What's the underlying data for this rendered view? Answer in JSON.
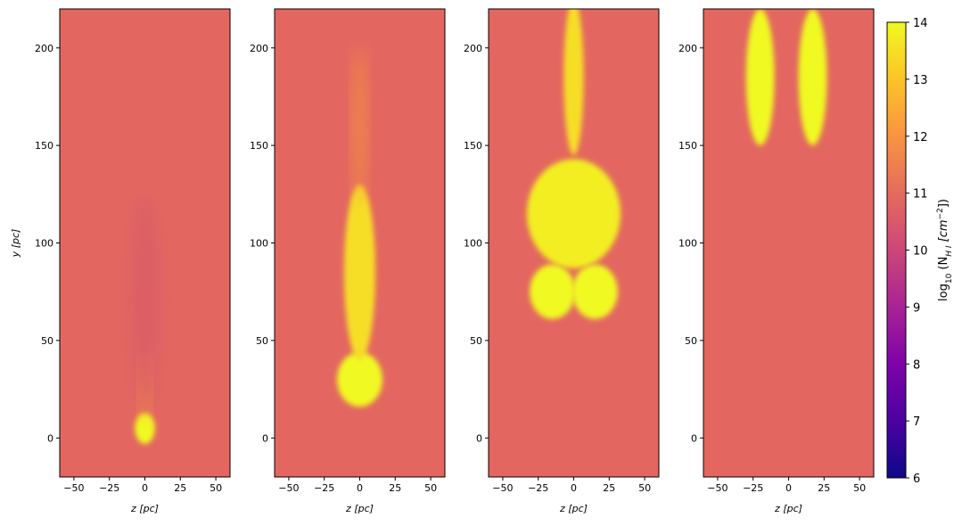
{
  "chart_data": {
    "type": "heatmap",
    "title": "",
    "panels": [
      {
        "name": "panel-1",
        "xlabel": "z [pc]",
        "ylabel": "y [pc]",
        "xlim": [
          -60,
          60
        ],
        "ylim": [
          -20,
          220
        ],
        "xticks": [
          -50,
          -25,
          0,
          25,
          50
        ],
        "yticks": [
          0,
          50,
          100,
          150,
          200
        ],
        "background_value": 10.9,
        "cloud": [
          {
            "z": 0,
            "y": 5,
            "rz": 7,
            "ry": 8,
            "value": 14
          },
          {
            "z": 0,
            "y": 28,
            "rz": 3,
            "ry": 18,
            "value": 12.5
          },
          {
            "z": 0,
            "y": 70,
            "rz": 10,
            "ry": 55,
            "value": 10.6
          }
        ]
      },
      {
        "name": "panel-2",
        "xlabel": "z [pc]",
        "ylabel": "",
        "xlim": [
          -60,
          60
        ],
        "ylim": [
          -20,
          220
        ],
        "xticks": [
          -50,
          -25,
          0,
          25,
          50
        ],
        "yticks": [
          0,
          50,
          100,
          150,
          200
        ],
        "background_value": 10.9,
        "cloud": [
          {
            "z": 0,
            "y": 30,
            "rz": 16,
            "ry": 14,
            "value": 14
          },
          {
            "z": 0,
            "y": 85,
            "rz": 11,
            "ry": 45,
            "value": 13.5
          },
          {
            "z": 0,
            "y": 160,
            "rz": 4,
            "ry": 40,
            "value": 12
          }
        ]
      },
      {
        "name": "panel-3",
        "xlabel": "z [pc]",
        "ylabel": "",
        "xlim": [
          -60,
          60
        ],
        "ylim": [
          -20,
          220
        ],
        "xticks": [
          -50,
          -25,
          0,
          25,
          50
        ],
        "yticks": [
          0,
          50,
          100,
          150,
          200
        ],
        "background_value": 10.9,
        "cloud": [
          {
            "z": -15,
            "y": 75,
            "rz": 16,
            "ry": 14,
            "value": 14
          },
          {
            "z": 15,
            "y": 75,
            "rz": 16,
            "ry": 14,
            "value": 14
          },
          {
            "z": 0,
            "y": 115,
            "rz": 33,
            "ry": 28,
            "value": 13.8
          },
          {
            "z": 0,
            "y": 185,
            "rz": 7,
            "ry": 40,
            "value": 13.5
          }
        ]
      },
      {
        "name": "panel-4",
        "xlabel": "z [pc]",
        "ylabel": "",
        "xlim": [
          -60,
          60
        ],
        "ylim": [
          -20,
          220
        ],
        "xticks": [
          -50,
          -25,
          0,
          25,
          50
        ],
        "yticks": [
          0,
          50,
          100,
          150,
          200
        ],
        "background_value": 10.9,
        "cloud": [
          {
            "z": -20,
            "y": 185,
            "rz": 10,
            "ry": 35,
            "value": 14
          },
          {
            "z": 17,
            "y": 185,
            "rz": 10,
            "ry": 35,
            "value": 14
          }
        ]
      }
    ],
    "colorbar": {
      "label": "log₁₀ (N_{H I} [cm⁻²])",
      "label_main": "log",
      "label_sub": "10",
      "label_rest": "  (N",
      "label_hi": "H I",
      "label_unit": " [cm",
      "label_exp": "−2",
      "label_end": "])",
      "range": [
        6,
        14
      ],
      "ticks": [
        6,
        7,
        8,
        9,
        10,
        11,
        12,
        13,
        14
      ],
      "colormap": "plasma"
    },
    "grid": false
  }
}
